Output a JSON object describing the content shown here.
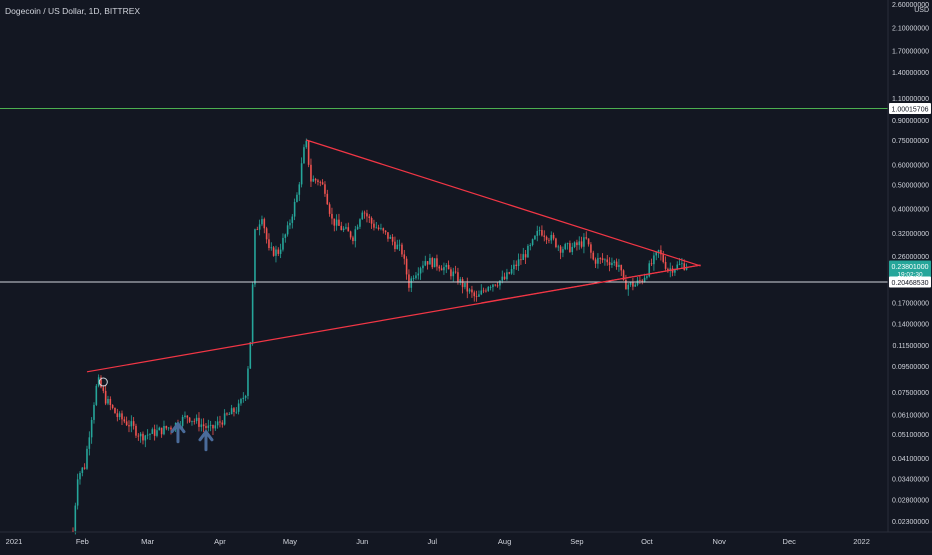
{
  "header": {
    "title": "Dogecoin / US Dollar, 1D, BITTREX"
  },
  "price_scale": {
    "unit": "USD",
    "tick_labels": [
      "2.60000000",
      "2.10000000",
      "1.70000000",
      "1.40000000",
      "1.10000000",
      "0.90000000",
      "0.75000000",
      "0.60000000",
      "0.50000000",
      "0.40000000",
      "0.32000000",
      "0.26000000",
      "0.17000000",
      "0.14000000",
      "0.11500000",
      "0.09500000",
      "0.07500000",
      "0.06100000",
      "0.05100000",
      "0.04100000",
      "0.03400000",
      "0.02800000",
      "0.02300000"
    ],
    "badges": [
      {
        "name": "horizontal-line-badge",
        "text": "1.00015706",
        "value": 1.00015706,
        "bg": "#ffffff",
        "fg": "#131722"
      },
      {
        "name": "last-price-badge",
        "text": "0.23801000",
        "sub": "19:02:30",
        "value": 0.23801,
        "bg": "#26a69a",
        "fg": "#ffffff"
      },
      {
        "name": "horizontal-line-badge",
        "text": "0.20468530",
        "value": 0.2046853,
        "bg": "#ffffff",
        "fg": "#131722"
      }
    ]
  },
  "time_scale": {
    "labels": [
      "2021",
      "Feb",
      "Mar",
      "Apr",
      "May",
      "Jun",
      "Jul",
      "Aug",
      "Sep",
      "Oct",
      "Nov",
      "Dec",
      "2022"
    ]
  },
  "chart_data": {
    "type": "candlestick",
    "title": "Dogecoin / US Dollar, 1D, BITTREX",
    "scale": "log",
    "ylim": [
      0.021,
      2.6
    ],
    "xlim": [
      "2021-01-01",
      "2022-01-01"
    ],
    "colors": {
      "up": "#26a69a",
      "down": "#ef5350",
      "background": "#131722",
      "trendline": "#f23645",
      "level_high": "#4caf50",
      "level_low": "#d1d4dc"
    },
    "price_anchors": [
      [
        "2021-01-28",
        0.021
      ],
      [
        "2021-01-30",
        0.035
      ],
      [
        "2021-02-02",
        0.038
      ],
      [
        "2021-02-05",
        0.06
      ],
      [
        "2021-02-07",
        0.078
      ],
      [
        "2021-02-08",
        0.082
      ],
      [
        "2021-02-11",
        0.07
      ],
      [
        "2021-02-16",
        0.06
      ],
      [
        "2021-02-22",
        0.055
      ],
      [
        "2021-02-26",
        0.05
      ],
      [
        "2021-03-05",
        0.052
      ],
      [
        "2021-03-12",
        0.055
      ],
      [
        "2021-03-18",
        0.06
      ],
      [
        "2021-03-22",
        0.057
      ],
      [
        "2021-03-28",
        0.053
      ],
      [
        "2021-04-04",
        0.06
      ],
      [
        "2021-04-09",
        0.065
      ],
      [
        "2021-04-12",
        0.075
      ],
      [
        "2021-04-14",
        0.12
      ],
      [
        "2021-04-16",
        0.32
      ],
      [
        "2021-04-19",
        0.38
      ],
      [
        "2021-04-22",
        0.27
      ],
      [
        "2021-04-26",
        0.27
      ],
      [
        "2021-04-30",
        0.33
      ],
      [
        "2021-05-04",
        0.45
      ],
      [
        "2021-05-07",
        0.68
      ],
      [
        "2021-05-08",
        0.72
      ],
      [
        "2021-05-10",
        0.52
      ],
      [
        "2021-05-13",
        0.52
      ],
      [
        "2021-05-16",
        0.48
      ],
      [
        "2021-05-19",
        0.36
      ],
      [
        "2021-05-22",
        0.34
      ],
      [
        "2021-05-28",
        0.31
      ],
      [
        "2021-06-01",
        0.4
      ],
      [
        "2021-06-05",
        0.35
      ],
      [
        "2021-06-12",
        0.31
      ],
      [
        "2021-06-18",
        0.27
      ],
      [
        "2021-06-21",
        0.2
      ],
      [
        "2021-06-23",
        0.22
      ],
      [
        "2021-06-28",
        0.25
      ],
      [
        "2021-07-04",
        0.24
      ],
      [
        "2021-07-10",
        0.22
      ],
      [
        "2021-07-15",
        0.195
      ],
      [
        "2021-07-20",
        0.175
      ],
      [
        "2021-07-25",
        0.2
      ],
      [
        "2021-08-01",
        0.21
      ],
      [
        "2021-08-06",
        0.24
      ],
      [
        "2021-08-12",
        0.28
      ],
      [
        "2021-08-16",
        0.33
      ],
      [
        "2021-08-20",
        0.31
      ],
      [
        "2021-08-25",
        0.28
      ],
      [
        "2021-08-30",
        0.28
      ],
      [
        "2021-09-05",
        0.3
      ],
      [
        "2021-09-08",
        0.25
      ],
      [
        "2021-09-14",
        0.25
      ],
      [
        "2021-09-19",
        0.24
      ],
      [
        "2021-09-21",
        0.2
      ],
      [
        "2021-09-26",
        0.2
      ],
      [
        "2021-09-29",
        0.21
      ],
      [
        "2021-10-04",
        0.25
      ],
      [
        "2021-10-06",
        0.27
      ],
      [
        "2021-10-10",
        0.23
      ],
      [
        "2021-10-16",
        0.24
      ],
      [
        "2021-10-18",
        0.238
      ]
    ],
    "annotations": {
      "trendlines": [
        {
          "from": [
            "2021-02-03",
            0.09
          ],
          "to": [
            "2021-10-24",
            0.239
          ]
        },
        {
          "from": [
            "2021-05-08",
            0.75
          ],
          "to": [
            "2021-10-24",
            0.237
          ]
        },
        {
          "from": [
            "2021-07-22",
            0.169
          ],
          "to": [
            "2021-10-24",
            0.239
          ]
        }
      ],
      "horizontal_levels": [
        1.00015706,
        0.2046853
      ],
      "arrows": [
        {
          "date": "2021-03-14",
          "price": 0.056
        },
        {
          "date": "2021-03-26",
          "price": 0.052
        }
      ],
      "circle": {
        "date": "2021-02-10",
        "price": 0.082
      }
    }
  }
}
